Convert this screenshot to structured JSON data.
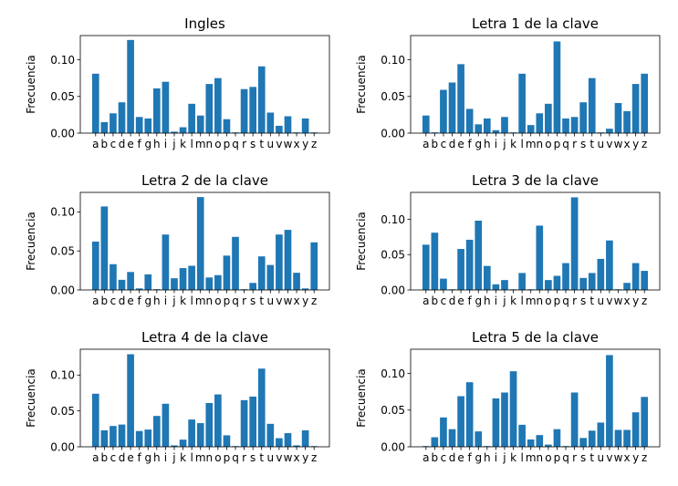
{
  "chart_data": [
    {
      "type": "bar",
      "title": "Ingles",
      "ylabel": "Frecuencia",
      "xlabel": "",
      "categories": [
        "a",
        "b",
        "c",
        "d",
        "e",
        "f",
        "g",
        "h",
        "i",
        "j",
        "k",
        "l",
        "m",
        "n",
        "o",
        "p",
        "q",
        "r",
        "s",
        "t",
        "u",
        "v",
        "w",
        "x",
        "y",
        "z"
      ],
      "values": [
        0.081,
        0.015,
        0.027,
        0.042,
        0.127,
        0.022,
        0.02,
        0.061,
        0.07,
        0.002,
        0.008,
        0.04,
        0.024,
        0.067,
        0.075,
        0.019,
        0.001,
        0.06,
        0.063,
        0.091,
        0.028,
        0.01,
        0.023,
        0.001,
        0.02,
        0.001
      ],
      "ylim": [
        0,
        0.133
      ],
      "yticks": [
        "0.00",
        "0.05",
        "0.10"
      ],
      "color": "#1f77b4"
    },
    {
      "type": "bar",
      "title": "Letra 1 de la clave",
      "ylabel": "Frecuencia",
      "xlabel": "",
      "categories": [
        "a",
        "b",
        "c",
        "d",
        "e",
        "f",
        "g",
        "h",
        "i",
        "j",
        "k",
        "l",
        "m",
        "n",
        "o",
        "p",
        "q",
        "r",
        "s",
        "t",
        "u",
        "v",
        "w",
        "x",
        "y",
        "z"
      ],
      "values": [
        0.024,
        0.001,
        0.059,
        0.069,
        0.094,
        0.033,
        0.012,
        0.02,
        0.004,
        0.022,
        0.001,
        0.081,
        0.011,
        0.027,
        0.04,
        0.125,
        0.02,
        0.022,
        0.042,
        0.075,
        0.001,
        0.006,
        0.041,
        0.03,
        0.067,
        0.081
      ],
      "ylim": [
        0,
        0.133
      ],
      "yticks": [
        "0.00",
        "0.05",
        "0.10"
      ],
      "color": "#1f77b4"
    },
    {
      "type": "bar",
      "title": "Letra 2 de la clave",
      "ylabel": "Frecuencia",
      "xlabel": "",
      "categories": [
        "a",
        "b",
        "c",
        "d",
        "e",
        "f",
        "g",
        "h",
        "i",
        "j",
        "k",
        "l",
        "m",
        "n",
        "o",
        "p",
        "q",
        "r",
        "s",
        "t",
        "u",
        "v",
        "w",
        "x",
        "y",
        "z"
      ],
      "values": [
        0.062,
        0.107,
        0.033,
        0.013,
        0.023,
        0.002,
        0.02,
        0.001,
        0.071,
        0.015,
        0.028,
        0.031,
        0.119,
        0.016,
        0.019,
        0.044,
        0.068,
        0.001,
        0.009,
        0.043,
        0.032,
        0.071,
        0.077,
        0.022,
        0.002,
        0.061
      ],
      "ylim": [
        0,
        0.125
      ],
      "yticks": [
        "0.00",
        "0.05",
        "0.10"
      ],
      "color": "#1f77b4"
    },
    {
      "type": "bar",
      "title": "Letra 3 de la clave",
      "ylabel": "Frecuencia",
      "xlabel": "",
      "categories": [
        "a",
        "b",
        "c",
        "d",
        "e",
        "f",
        "g",
        "h",
        "i",
        "j",
        "k",
        "l",
        "m",
        "n",
        "o",
        "p",
        "q",
        "r",
        "s",
        "t",
        "u",
        "v",
        "w",
        "x",
        "y",
        "z"
      ],
      "values": [
        0.064,
        0.081,
        0.016,
        0.001,
        0.058,
        0.071,
        0.098,
        0.034,
        0.008,
        0.014,
        0.001,
        0.024,
        0.001,
        0.091,
        0.014,
        0.02,
        0.038,
        0.131,
        0.017,
        0.024,
        0.044,
        0.07,
        0.001,
        0.01,
        0.038,
        0.027
      ],
      "ylim": [
        0,
        0.138
      ],
      "yticks": [
        "0.00",
        "0.05",
        "0.10"
      ],
      "color": "#1f77b4"
    },
    {
      "type": "bar",
      "title": "Letra 4 de la clave",
      "ylabel": "Frecuencia",
      "xlabel": "",
      "categories": [
        "a",
        "b",
        "c",
        "d",
        "e",
        "f",
        "g",
        "h",
        "i",
        "j",
        "k",
        "l",
        "m",
        "n",
        "o",
        "p",
        "q",
        "r",
        "s",
        "t",
        "u",
        "v",
        "w",
        "x",
        "y",
        "z"
      ],
      "values": [
        0.074,
        0.023,
        0.029,
        0.031,
        0.129,
        0.022,
        0.024,
        0.043,
        0.06,
        0.002,
        0.01,
        0.038,
        0.033,
        0.061,
        0.073,
        0.016,
        0.001,
        0.065,
        0.07,
        0.109,
        0.032,
        0.012,
        0.019,
        0.002,
        0.023,
        0.001
      ],
      "ylim": [
        0,
        0.136
      ],
      "yticks": [
        "0.00",
        "0.05",
        "0.10"
      ],
      "color": "#1f77b4"
    },
    {
      "type": "bar",
      "title": "Letra 5 de la clave",
      "ylabel": "Frecuencia",
      "xlabel": "",
      "categories": [
        "a",
        "b",
        "c",
        "d",
        "e",
        "f",
        "g",
        "h",
        "i",
        "j",
        "k",
        "l",
        "m",
        "n",
        "o",
        "p",
        "q",
        "r",
        "s",
        "t",
        "u",
        "v",
        "w",
        "x",
        "y",
        "z"
      ],
      "values": [
        0.001,
        0.013,
        0.04,
        0.024,
        0.069,
        0.088,
        0.021,
        0.001,
        0.066,
        0.074,
        0.103,
        0.03,
        0.01,
        0.016,
        0.003,
        0.024,
        0.001,
        0.074,
        0.012,
        0.022,
        0.033,
        0.125,
        0.023,
        0.023,
        0.047,
        0.068
      ],
      "ylim": [
        0,
        0.133
      ],
      "yticks": [
        "0.00",
        "0.05",
        "0.10"
      ],
      "color": "#1f77b4"
    }
  ]
}
